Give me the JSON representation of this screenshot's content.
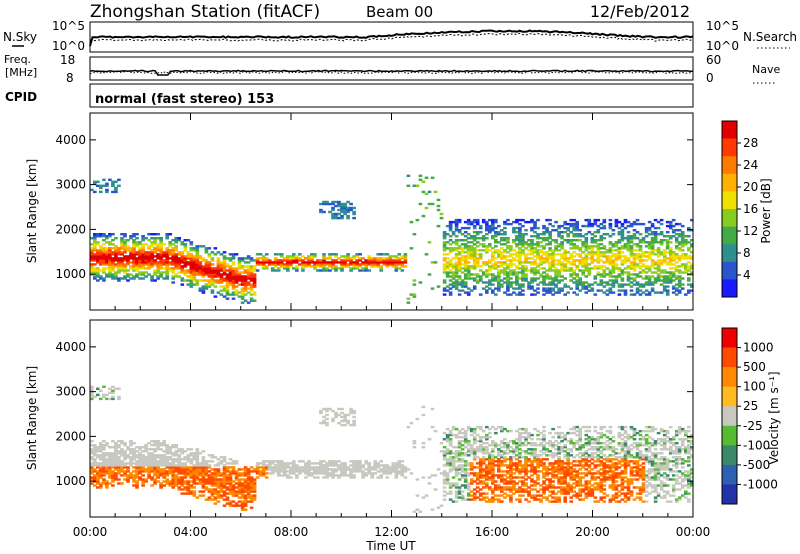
{
  "header": {
    "title": "Zhongshan Station (fitACF)",
    "beam": "Beam 00",
    "date": "12/Feb/2012"
  },
  "sky_panel": {
    "left_label": "N.Sky",
    "right_label": "N.Search",
    "left_ticks": [
      "10^5",
      "10^0"
    ],
    "right_ticks": [
      "10^5",
      "10^0"
    ]
  },
  "freq_panel": {
    "left_label_top": "Freq.",
    "left_label_bottom": "[MHz]",
    "right_label": "Nave",
    "left_ticks": [
      "18",
      "8"
    ],
    "right_ticks": [
      "60",
      "0"
    ]
  },
  "cpid": {
    "label": "CPID",
    "text": "normal (fast stereo) 153"
  },
  "chart_data": [
    {
      "type": "heatmap",
      "title": "",
      "xlabel": "Time UT",
      "ylabel": "Slant Range [km]",
      "xlim": [
        0,
        24
      ],
      "ylim": [
        200,
        4600
      ],
      "x_ticks": [
        "00:00",
        "04:00",
        "08:00",
        "12:00",
        "16:00",
        "20:00",
        "00:00"
      ],
      "y_ticks": [
        1000,
        2000,
        3000,
        4000
      ],
      "colorbar": {
        "label": "Power [dB]",
        "ticks": [
          4,
          8,
          12,
          16,
          20,
          24,
          28
        ],
        "range": [
          0,
          32
        ],
        "colors": [
          "#1a1aff",
          "#2a55cc",
          "#2f8f8f",
          "#44aa44",
          "#88cc22",
          "#f0e000",
          "#ffb000",
          "#ff7a00",
          "#ff3a00",
          "#e00000"
        ]
      }
    },
    {
      "type": "heatmap",
      "title": "",
      "xlabel": "Time UT",
      "ylabel": "Slant Range [km]",
      "xlim": [
        0,
        24
      ],
      "ylim": [
        200,
        4600
      ],
      "x_ticks": [
        "00:00",
        "04:00",
        "08:00",
        "12:00",
        "16:00",
        "20:00",
        "00:00"
      ],
      "y_ticks": [
        1000,
        2000,
        3000,
        4000
      ],
      "colorbar": {
        "label": "Velocity [m s⁻¹]",
        "ticks": [
          1000,
          500,
          100,
          25,
          -25,
          -100,
          -500,
          -1000
        ],
        "colors": [
          "#2233aa",
          "#2f5fb0",
          "#3a8a6a",
          "#55bb33",
          "#c8c8c0",
          "#ffbb22",
          "#ff8a00",
          "#ff4a00",
          "#ee0000"
        ]
      }
    }
  ]
}
